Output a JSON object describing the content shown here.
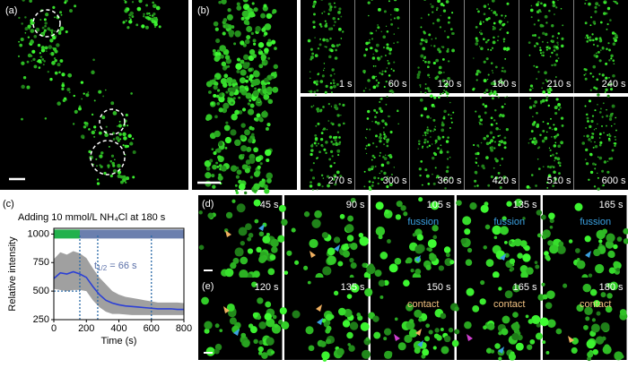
{
  "panels": {
    "a": {
      "label": "(a)"
    },
    "b": {
      "label": "(b)",
      "frames": [
        "1 s",
        "60 s",
        "120 s",
        "180 s",
        "210 s",
        "240 s",
        "270 s",
        "300 s",
        "360 s",
        "420 s",
        "510 s",
        "600 s"
      ]
    },
    "c": {
      "label": "(c)"
    },
    "d": {
      "label": "(d)",
      "frames": [
        {
          "time": "45 s"
        },
        {
          "time": "90 s"
        },
        {
          "time": "105 s",
          "note": "fussion"
        },
        {
          "time": "135 s",
          "note": "fussion"
        },
        {
          "time": "165 s",
          "note": "fussion"
        }
      ]
    },
    "e": {
      "label": "(e)",
      "frames": [
        {
          "time": "120 s"
        },
        {
          "time": "135 s"
        },
        {
          "time": "150 s",
          "note": "contact"
        },
        {
          "time": "165 s",
          "note": "contact"
        },
        {
          "time": "180 s",
          "note": "contact"
        }
      ]
    }
  },
  "chart_data": {
    "type": "line",
    "title": "Adding 10 mmol/L NH₄Cl at 180 s",
    "x_label": "Time (s)",
    "y_label": "Relative intensity",
    "annotation": {
      "base": "t",
      "sub": "1/2",
      "rest": " = 66 s"
    },
    "x": [
      0,
      40,
      80,
      120,
      160,
      200,
      240,
      280,
      320,
      360,
      400,
      440,
      480,
      520,
      560,
      600,
      640,
      680,
      720,
      760,
      800
    ],
    "values": [
      610,
      660,
      650,
      670,
      650,
      620,
      540,
      470,
      420,
      395,
      380,
      370,
      365,
      360,
      355,
      350,
      345,
      345,
      345,
      340,
      340
    ],
    "color": "#2b3fd6",
    "band": {
      "upper": [
        780,
        840,
        820,
        850,
        830,
        790,
        700,
        620,
        560,
        500,
        470,
        450,
        440,
        430,
        420,
        410,
        400,
        400,
        400,
        400,
        395
      ],
      "lower": [
        520,
        510,
        500,
        510,
        510,
        500,
        420,
        360,
        320,
        300,
        300,
        295,
        290,
        290,
        290,
        290,
        290,
        290,
        290,
        290,
        290
      ],
      "color": "#a0a0a0"
    },
    "phases": [
      {
        "x": [
          0,
          160
        ],
        "color": "#22b14c"
      },
      {
        "x": [
          160,
          800
        ],
        "color": "#6b7fae"
      }
    ],
    "phase_y": 1000,
    "markers_x": [
      160,
      270,
      600
    ],
    "hline": {
      "y": 500,
      "x": [
        0,
        160
      ]
    },
    "xlim": [
      0,
      800
    ],
    "xticks": [
      0,
      200,
      400,
      600,
      800
    ],
    "ylim": [
      250,
      1050
    ],
    "yticks": [
      250,
      500,
      750,
      1000
    ]
  }
}
